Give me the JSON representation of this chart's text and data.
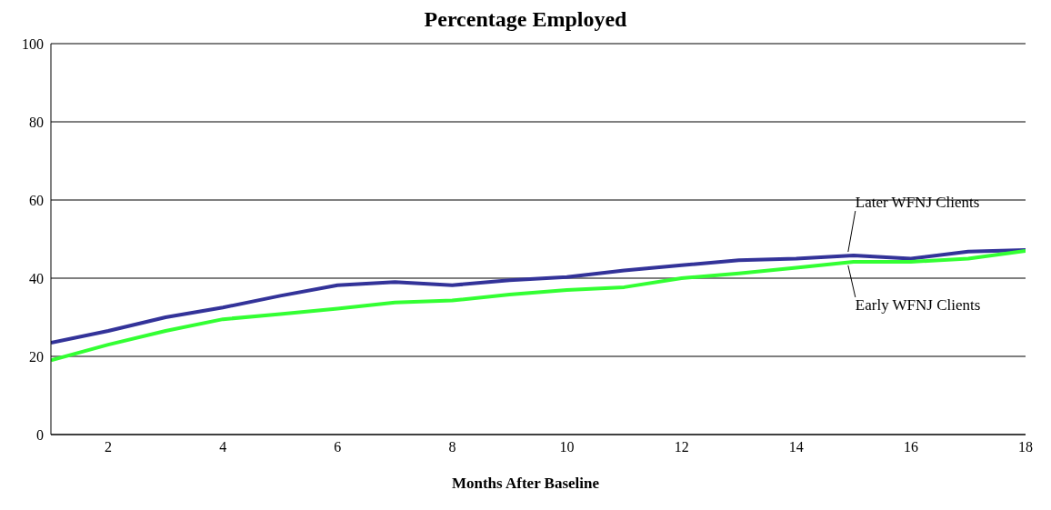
{
  "chart_data": {
    "type": "line",
    "title": "Percentage Employed",
    "xlabel": "Months After Baseline",
    "x": [
      1,
      2,
      3,
      4,
      5,
      6,
      7,
      8,
      9,
      10,
      11,
      12,
      13,
      14,
      15,
      16,
      17,
      18
    ],
    "series": [
      {
        "name": "Later WFNJ Clients",
        "color": "#333399",
        "values": [
          23.5,
          26.5,
          30,
          32.5,
          35.5,
          38.2,
          39,
          38.2,
          39.5,
          40.3,
          42,
          43.3,
          44.6,
          45,
          45.8,
          45,
          46.8,
          47.2
        ]
      },
      {
        "name": "Early WFNJ Clients",
        "color": "#33ff33",
        "values": [
          19,
          23,
          26.5,
          29.5,
          30.8,
          32.2,
          33.8,
          34.3,
          35.8,
          37,
          37.7,
          40,
          41.2,
          42.7,
          44.2,
          44.2,
          45,
          47
        ]
      }
    ],
    "xlim": [
      1,
      18
    ],
    "xticks": [
      2,
      4,
      6,
      8,
      10,
      12,
      14,
      16,
      18
    ],
    "ylim": [
      0,
      100
    ],
    "yticks": [
      0,
      20,
      40,
      60,
      80,
      100
    ],
    "grid": "y",
    "legend": false,
    "marker": "none",
    "line_style": "solid"
  }
}
